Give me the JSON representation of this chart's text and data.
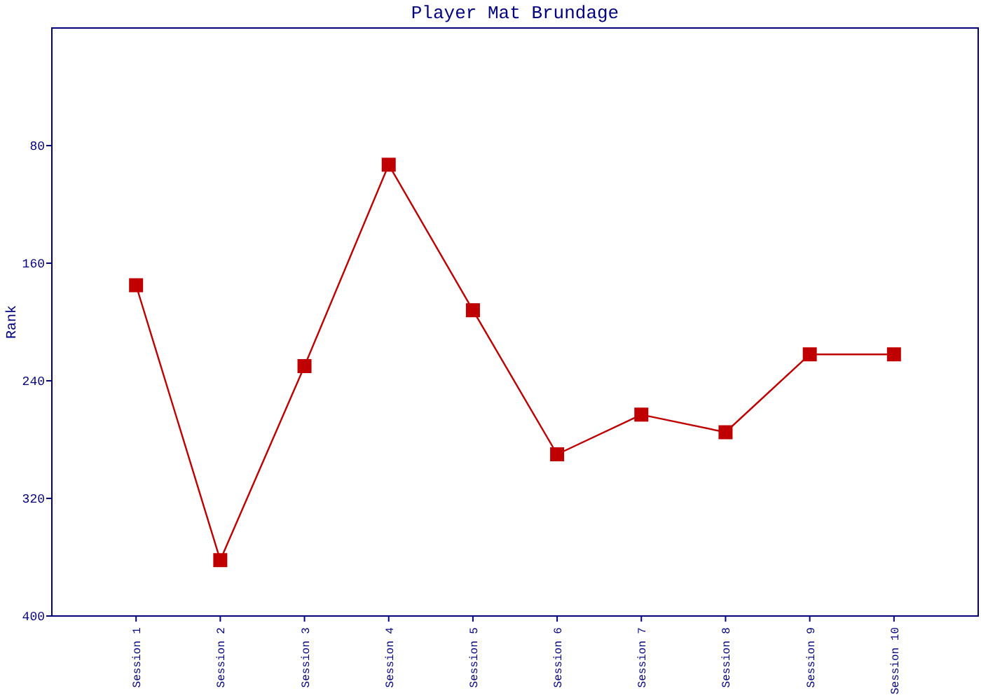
{
  "chart_data": {
    "type": "line",
    "title": "Player Mat Brundage",
    "ylabel": "Rank",
    "categories": [
      "Session 1",
      "Session 2",
      "Session 3",
      "Session 4",
      "Session 5",
      "Session 6",
      "Session 7",
      "Session 8",
      "Session 9",
      "Session 10"
    ],
    "series": [
      {
        "color": "#c00000",
        "values": [
          175,
          362,
          230,
          93,
          192,
          290,
          263,
          275,
          222,
          222
        ]
      }
    ],
    "ylim": [
      400,
      0
    ],
    "yticks": [
      80,
      160,
      240,
      320,
      400
    ],
    "grid": false,
    "marker": "square",
    "line_style": "solid"
  }
}
